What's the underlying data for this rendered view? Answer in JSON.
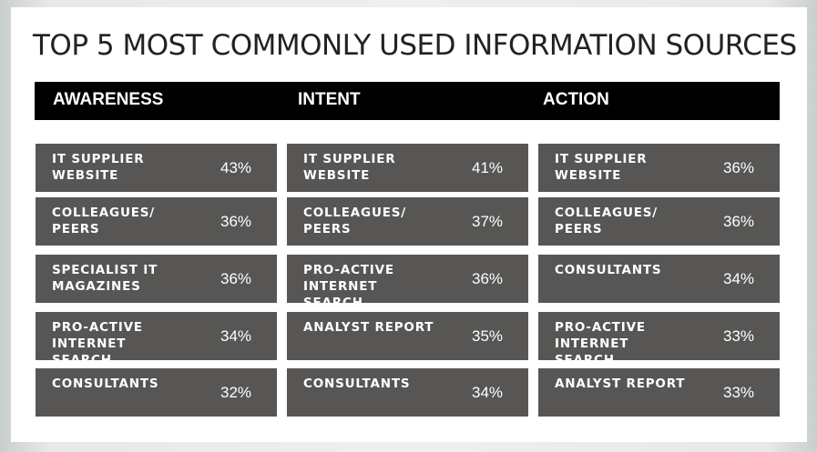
{
  "chart_data": {
    "type": "table",
    "title": "TOP 5 MOST COMMONLY USED INFORMATION SOURCES",
    "colors": {
      "header_bg": "#000000",
      "cell_bg": "#575654",
      "text": "#ffffff"
    },
    "columns": [
      {
        "name": "AWARENESS",
        "rows": [
          {
            "label": "IT SUPPLIER\nWEBSITE",
            "value": "43%"
          },
          {
            "label": "COLLEAGUES/\nPEERS",
            "value": "36%"
          },
          {
            "label": "SPECIALIST IT\nMAGAZINES",
            "value": "36%"
          },
          {
            "label": "PRO-ACTIVE INTERNET\nSEARCH",
            "value": "34%"
          },
          {
            "label": "CONSULTANTS",
            "value": "32%"
          }
        ]
      },
      {
        "name": "INTENT",
        "rows": [
          {
            "label": "IT SUPPLIER\nWEBSITE",
            "value": "41%"
          },
          {
            "label": "COLLEAGUES/\nPEERS",
            "value": "37%"
          },
          {
            "label": "PRO-ACTIVE INTERNET\nSEARCH",
            "value": "36%"
          },
          {
            "label": "ANALYST REPORT",
            "value": "35%"
          },
          {
            "label": "CONSULTANTS",
            "value": "34%"
          }
        ]
      },
      {
        "name": "ACTION",
        "rows": [
          {
            "label": "IT SUPPLIER\nWEBSITE",
            "value": "36%"
          },
          {
            "label": "COLLEAGUES/\nPEERS",
            "value": "36%"
          },
          {
            "label": "CONSULTANTS",
            "value": "34%"
          },
          {
            "label": "PRO-ACTIVE INTERNET\nSEARCH",
            "value": "33%"
          },
          {
            "label": "ANALYST REPORT",
            "value": "33%"
          }
        ]
      }
    ]
  }
}
